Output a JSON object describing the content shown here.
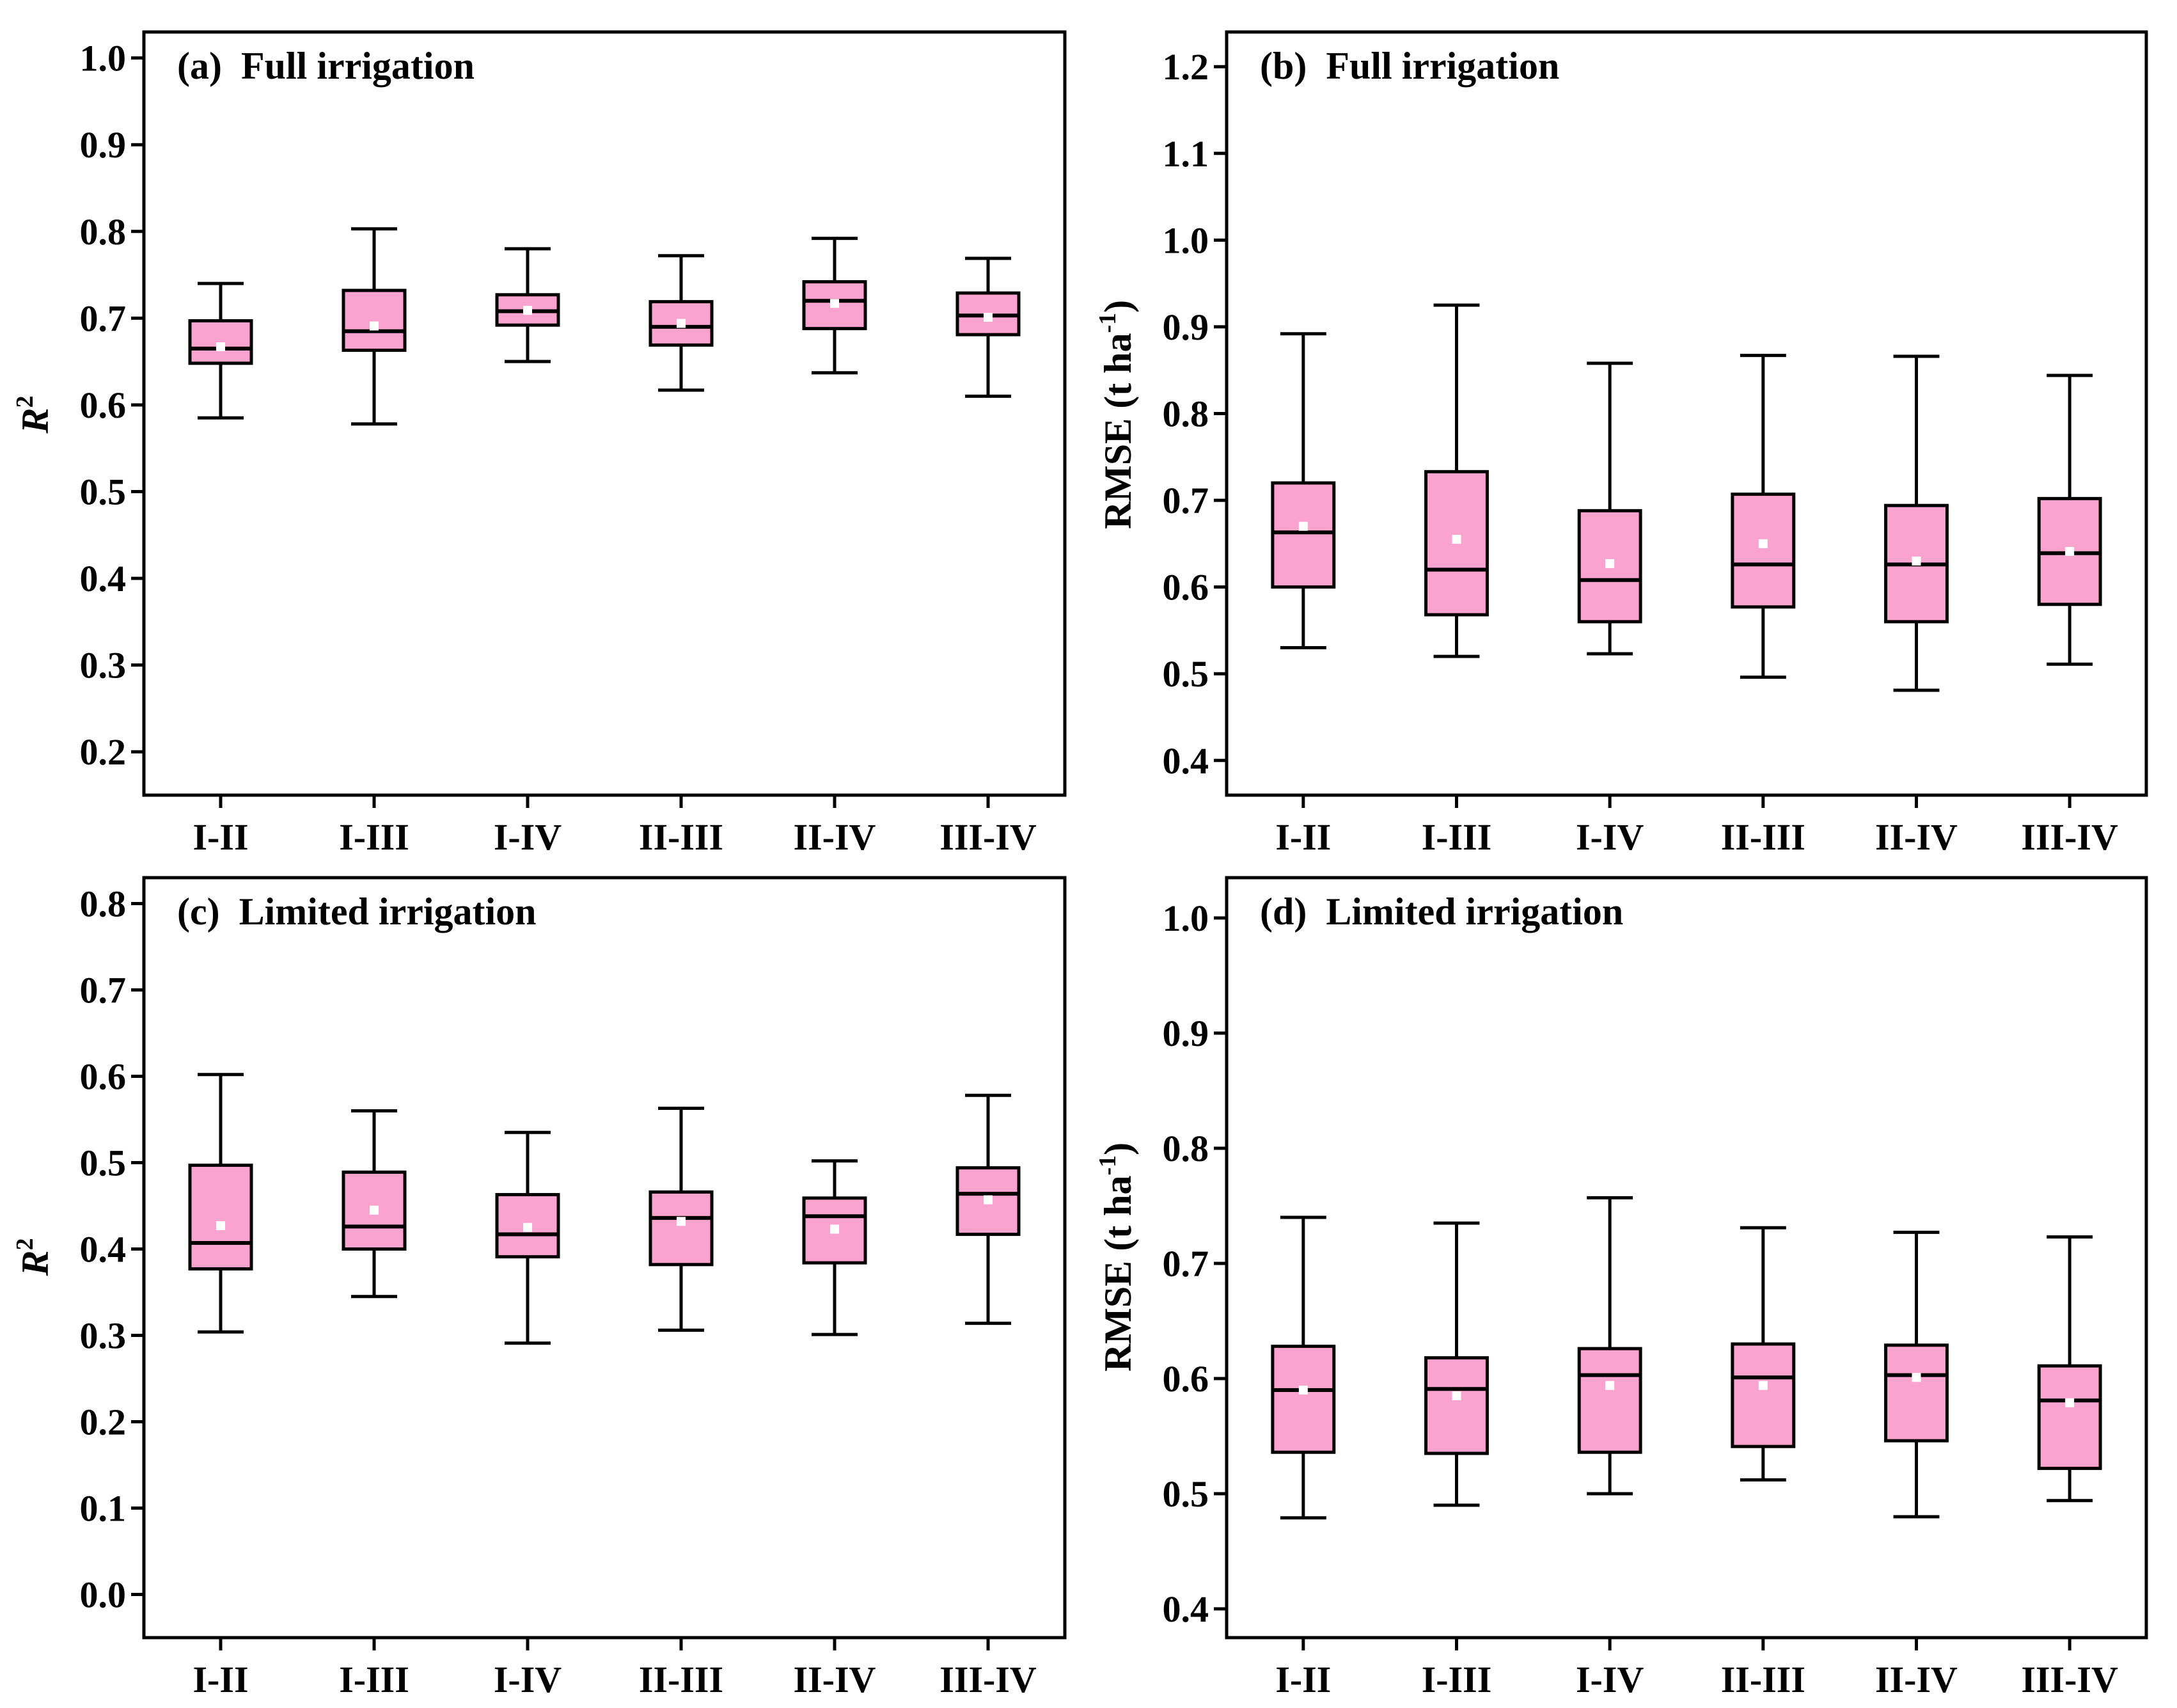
{
  "colors": {
    "box_fill": "#fba3cf",
    "stroke": "#000000",
    "mean_marker": "#ffffff",
    "background": "#ffffff"
  },
  "chart_data": [
    {
      "type": "box",
      "title": "(a)  Full irrigation",
      "ylabel": {
        "main": "R",
        "sup": "2"
      },
      "ylim": [
        0.15,
        1.03
      ],
      "yticks": [
        0.2,
        0.3,
        0.4,
        0.5,
        0.6,
        0.7,
        0.8,
        0.9,
        1.0
      ],
      "ytick_labels": [
        "0.2",
        "0.3",
        "0.4",
        "0.5",
        "0.6",
        "0.7",
        "0.8",
        "0.9",
        "1.0"
      ],
      "categories": [
        "I-II",
        "I-III",
        "I-IV",
        "II-III",
        "II-IV",
        "III-IV"
      ],
      "boxes": [
        {
          "min": 0.585,
          "q1": 0.648,
          "median": 0.665,
          "q3": 0.697,
          "max": 0.74,
          "mean": 0.667
        },
        {
          "min": 0.578,
          "q1": 0.663,
          "median": 0.685,
          "q3": 0.732,
          "max": 0.803,
          "mean": 0.691
        },
        {
          "min": 0.65,
          "q1": 0.692,
          "median": 0.708,
          "q3": 0.727,
          "max": 0.78,
          "mean": 0.709
        },
        {
          "min": 0.617,
          "q1": 0.669,
          "median": 0.69,
          "q3": 0.719,
          "max": 0.772,
          "mean": 0.694
        },
        {
          "min": 0.637,
          "q1": 0.688,
          "median": 0.72,
          "q3": 0.742,
          "max": 0.792,
          "mean": 0.717
        },
        {
          "min": 0.61,
          "q1": 0.681,
          "median": 0.703,
          "q3": 0.729,
          "max": 0.769,
          "mean": 0.701
        }
      ]
    },
    {
      "type": "box",
      "title": "(b)  Full irrigation",
      "ylabel": {
        "main": "RMSE (t ha",
        "sup": "-1",
        "end": ")"
      },
      "ylim": [
        0.36,
        1.24
      ],
      "yticks": [
        0.4,
        0.5,
        0.6,
        0.7,
        0.8,
        0.9,
        1.0,
        1.1,
        1.2
      ],
      "ytick_labels": [
        "0.4",
        "0.5",
        "0.6",
        "0.7",
        "0.8",
        "0.9",
        "1.0",
        "1.1",
        "1.2"
      ],
      "categories": [
        "I-II",
        "I-III",
        "I-IV",
        "II-III",
        "II-IV",
        "III-IV"
      ],
      "boxes": [
        {
          "min": 0.53,
          "q1": 0.6,
          "median": 0.663,
          "q3": 0.72,
          "max": 0.892,
          "mean": 0.67
        },
        {
          "min": 0.52,
          "q1": 0.568,
          "median": 0.62,
          "q3": 0.733,
          "max": 0.925,
          "mean": 0.655
        },
        {
          "min": 0.523,
          "q1": 0.56,
          "median": 0.608,
          "q3": 0.688,
          "max": 0.858,
          "mean": 0.627
        },
        {
          "min": 0.496,
          "q1": 0.577,
          "median": 0.626,
          "q3": 0.707,
          "max": 0.867,
          "mean": 0.65
        },
        {
          "min": 0.481,
          "q1": 0.56,
          "median": 0.626,
          "q3": 0.694,
          "max": 0.866,
          "mean": 0.63
        },
        {
          "min": 0.511,
          "q1": 0.58,
          "median": 0.639,
          "q3": 0.702,
          "max": 0.844,
          "mean": 0.641
        }
      ]
    },
    {
      "type": "box",
      "title": "(c)  Limited irrigation",
      "ylabel": {
        "main": "R",
        "sup": "2"
      },
      "ylim": [
        -0.05,
        0.83
      ],
      "yticks": [
        0.0,
        0.1,
        0.2,
        0.3,
        0.4,
        0.5,
        0.6,
        0.7,
        0.8
      ],
      "ytick_labels": [
        "0.0",
        "0.1",
        "0.2",
        "0.3",
        "0.4",
        "0.5",
        "0.6",
        "0.7",
        "0.8"
      ],
      "categories": [
        "I-II",
        "I-III",
        "I-IV",
        "II-III",
        "II-IV",
        "III-IV"
      ],
      "boxes": [
        {
          "min": 0.304,
          "q1": 0.377,
          "median": 0.407,
          "q3": 0.497,
          "max": 0.602,
          "mean": 0.427
        },
        {
          "min": 0.345,
          "q1": 0.4,
          "median": 0.426,
          "q3": 0.489,
          "max": 0.56,
          "mean": 0.445
        },
        {
          "min": 0.291,
          "q1": 0.391,
          "median": 0.417,
          "q3": 0.463,
          "max": 0.535,
          "mean": 0.425
        },
        {
          "min": 0.306,
          "q1": 0.382,
          "median": 0.436,
          "q3": 0.466,
          "max": 0.563,
          "mean": 0.432
        },
        {
          "min": 0.301,
          "q1": 0.384,
          "median": 0.438,
          "q3": 0.459,
          "max": 0.502,
          "mean": 0.423
        },
        {
          "min": 0.314,
          "q1": 0.417,
          "median": 0.464,
          "q3": 0.494,
          "max": 0.578,
          "mean": 0.457
        }
      ]
    },
    {
      "type": "box",
      "title": "(d)  Limited irrigation",
      "ylabel": {
        "main": "RMSE (t ha",
        "sup": "-1",
        "end": ")"
      },
      "ylim": [
        0.375,
        1.035
      ],
      "yticks": [
        0.4,
        0.5,
        0.6,
        0.7,
        0.8,
        0.9,
        1.0
      ],
      "ytick_labels": [
        "0.4",
        "0.5",
        "0.6",
        "0.7",
        "0.8",
        "0.9",
        "1.0"
      ],
      "categories": [
        "I-II",
        "I-III",
        "I-IV",
        "II-III",
        "II-IV",
        "III-IV"
      ],
      "boxes": [
        {
          "min": 0.479,
          "q1": 0.536,
          "median": 0.59,
          "q3": 0.628,
          "max": 0.74,
          "mean": 0.59
        },
        {
          "min": 0.49,
          "q1": 0.535,
          "median": 0.591,
          "q3": 0.618,
          "max": 0.735,
          "mean": 0.585
        },
        {
          "min": 0.5,
          "q1": 0.536,
          "median": 0.603,
          "q3": 0.626,
          "max": 0.757,
          "mean": 0.594
        },
        {
          "min": 0.512,
          "q1": 0.541,
          "median": 0.601,
          "q3": 0.63,
          "max": 0.731,
          "mean": 0.594
        },
        {
          "min": 0.48,
          "q1": 0.546,
          "median": 0.603,
          "q3": 0.629,
          "max": 0.727,
          "mean": 0.601
        },
        {
          "min": 0.494,
          "q1": 0.522,
          "median": 0.581,
          "q3": 0.611,
          "max": 0.723,
          "mean": 0.579
        }
      ]
    }
  ]
}
